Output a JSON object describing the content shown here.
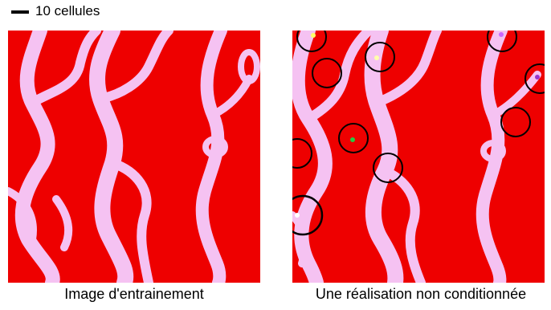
{
  "scale": {
    "label": "10 cellules"
  },
  "panels": [
    {
      "caption": "Image d'entrainement"
    },
    {
      "caption": "Une réalisation non conditionnée"
    }
  ],
  "colors": {
    "background": "#ee0000",
    "channel": "#f5c2f2",
    "circle": "#000000"
  }
}
